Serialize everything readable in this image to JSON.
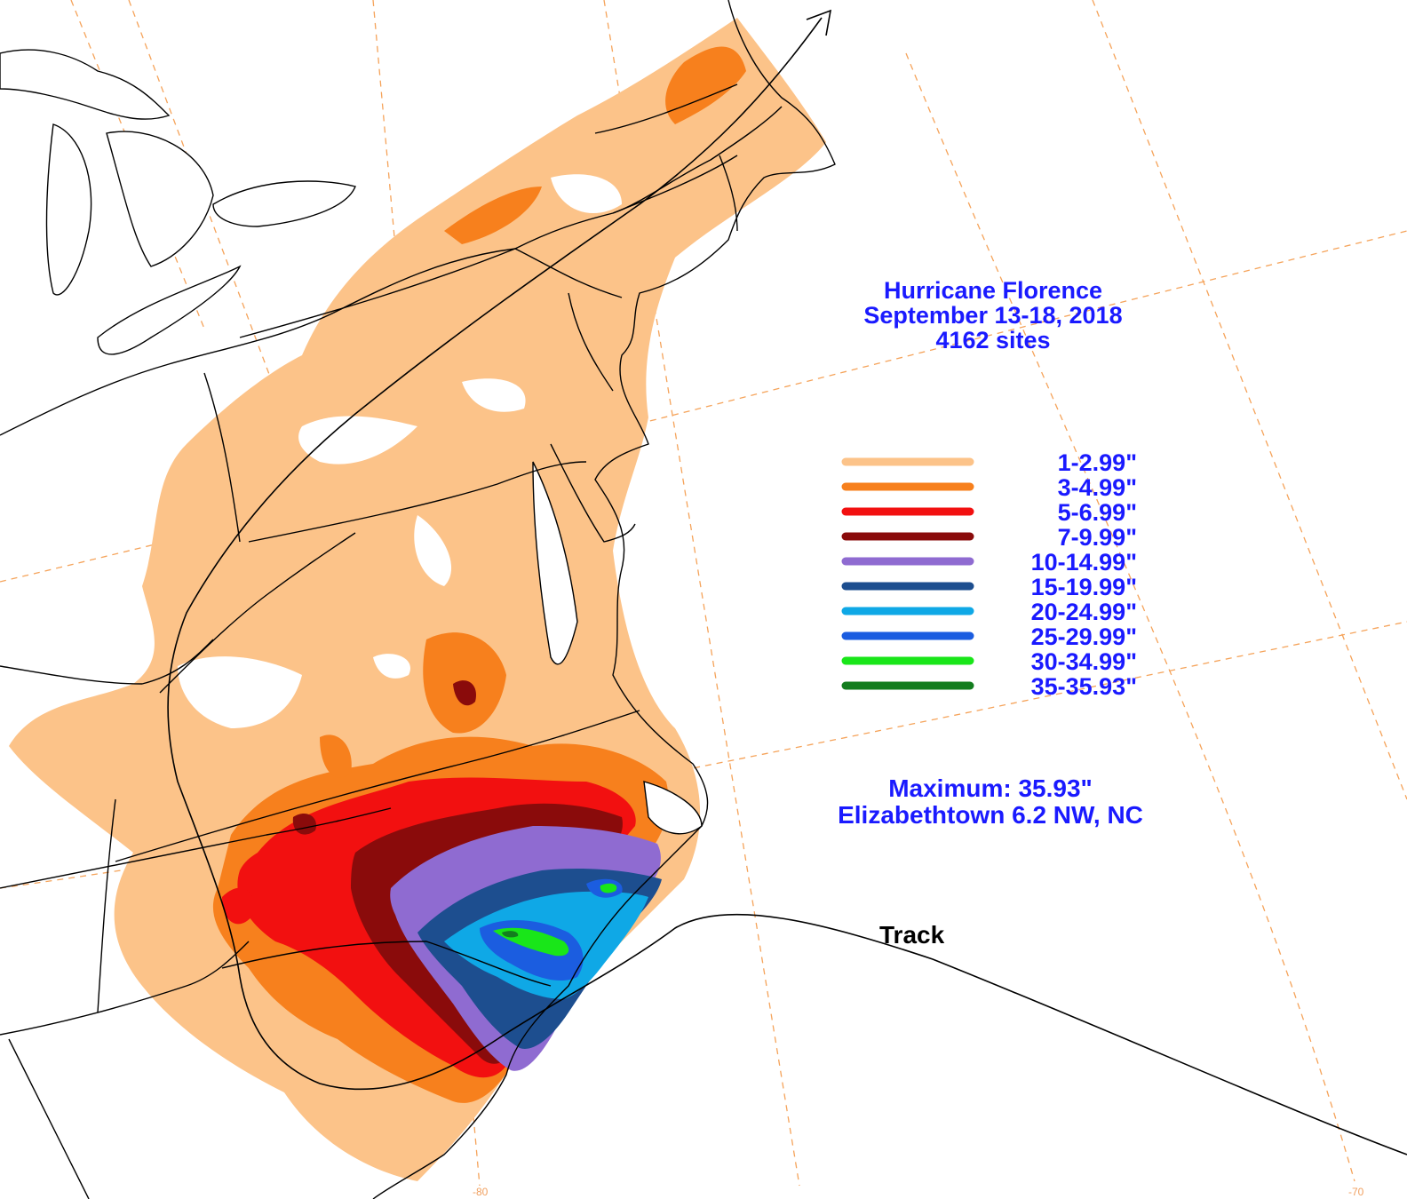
{
  "title": {
    "line1": "Hurricane Florence",
    "line2": "September 13-18, 2018",
    "line3": "4162 sites"
  },
  "legend": {
    "items": [
      {
        "label": "1-2.99\"",
        "color": "#fcc389"
      },
      {
        "label": "3-4.99\"",
        "color": "#f7801d"
      },
      {
        "label": "5-6.99\"",
        "color": "#f21010"
      },
      {
        "label": "7-9.99\"",
        "color": "#8a0b0b"
      },
      {
        "label": "10-14.99\"",
        "color": "#8f6bd1"
      },
      {
        "label": "15-19.99\"",
        "color": "#1d4e8f"
      },
      {
        "label": "20-24.99\"",
        "color": "#0fa8e6"
      },
      {
        "label": "25-29.99\"",
        "color": "#1b5de0"
      },
      {
        "label": "30-34.99\"",
        "color": "#19e619"
      },
      {
        "label": "35-35.93\"",
        "color": "#137d1e"
      }
    ]
  },
  "maximum": {
    "value_line": "Maximum: 35.93\"",
    "location_line": "Elizabethtown 6.2 NW, NC"
  },
  "track_label": "Track",
  "longitude_labels": [
    "-80",
    "-70"
  ],
  "colors": {
    "title_text": "#1a1aff",
    "graticule": "#f5a35a",
    "track": "#000000",
    "boundary": "#000000"
  }
}
